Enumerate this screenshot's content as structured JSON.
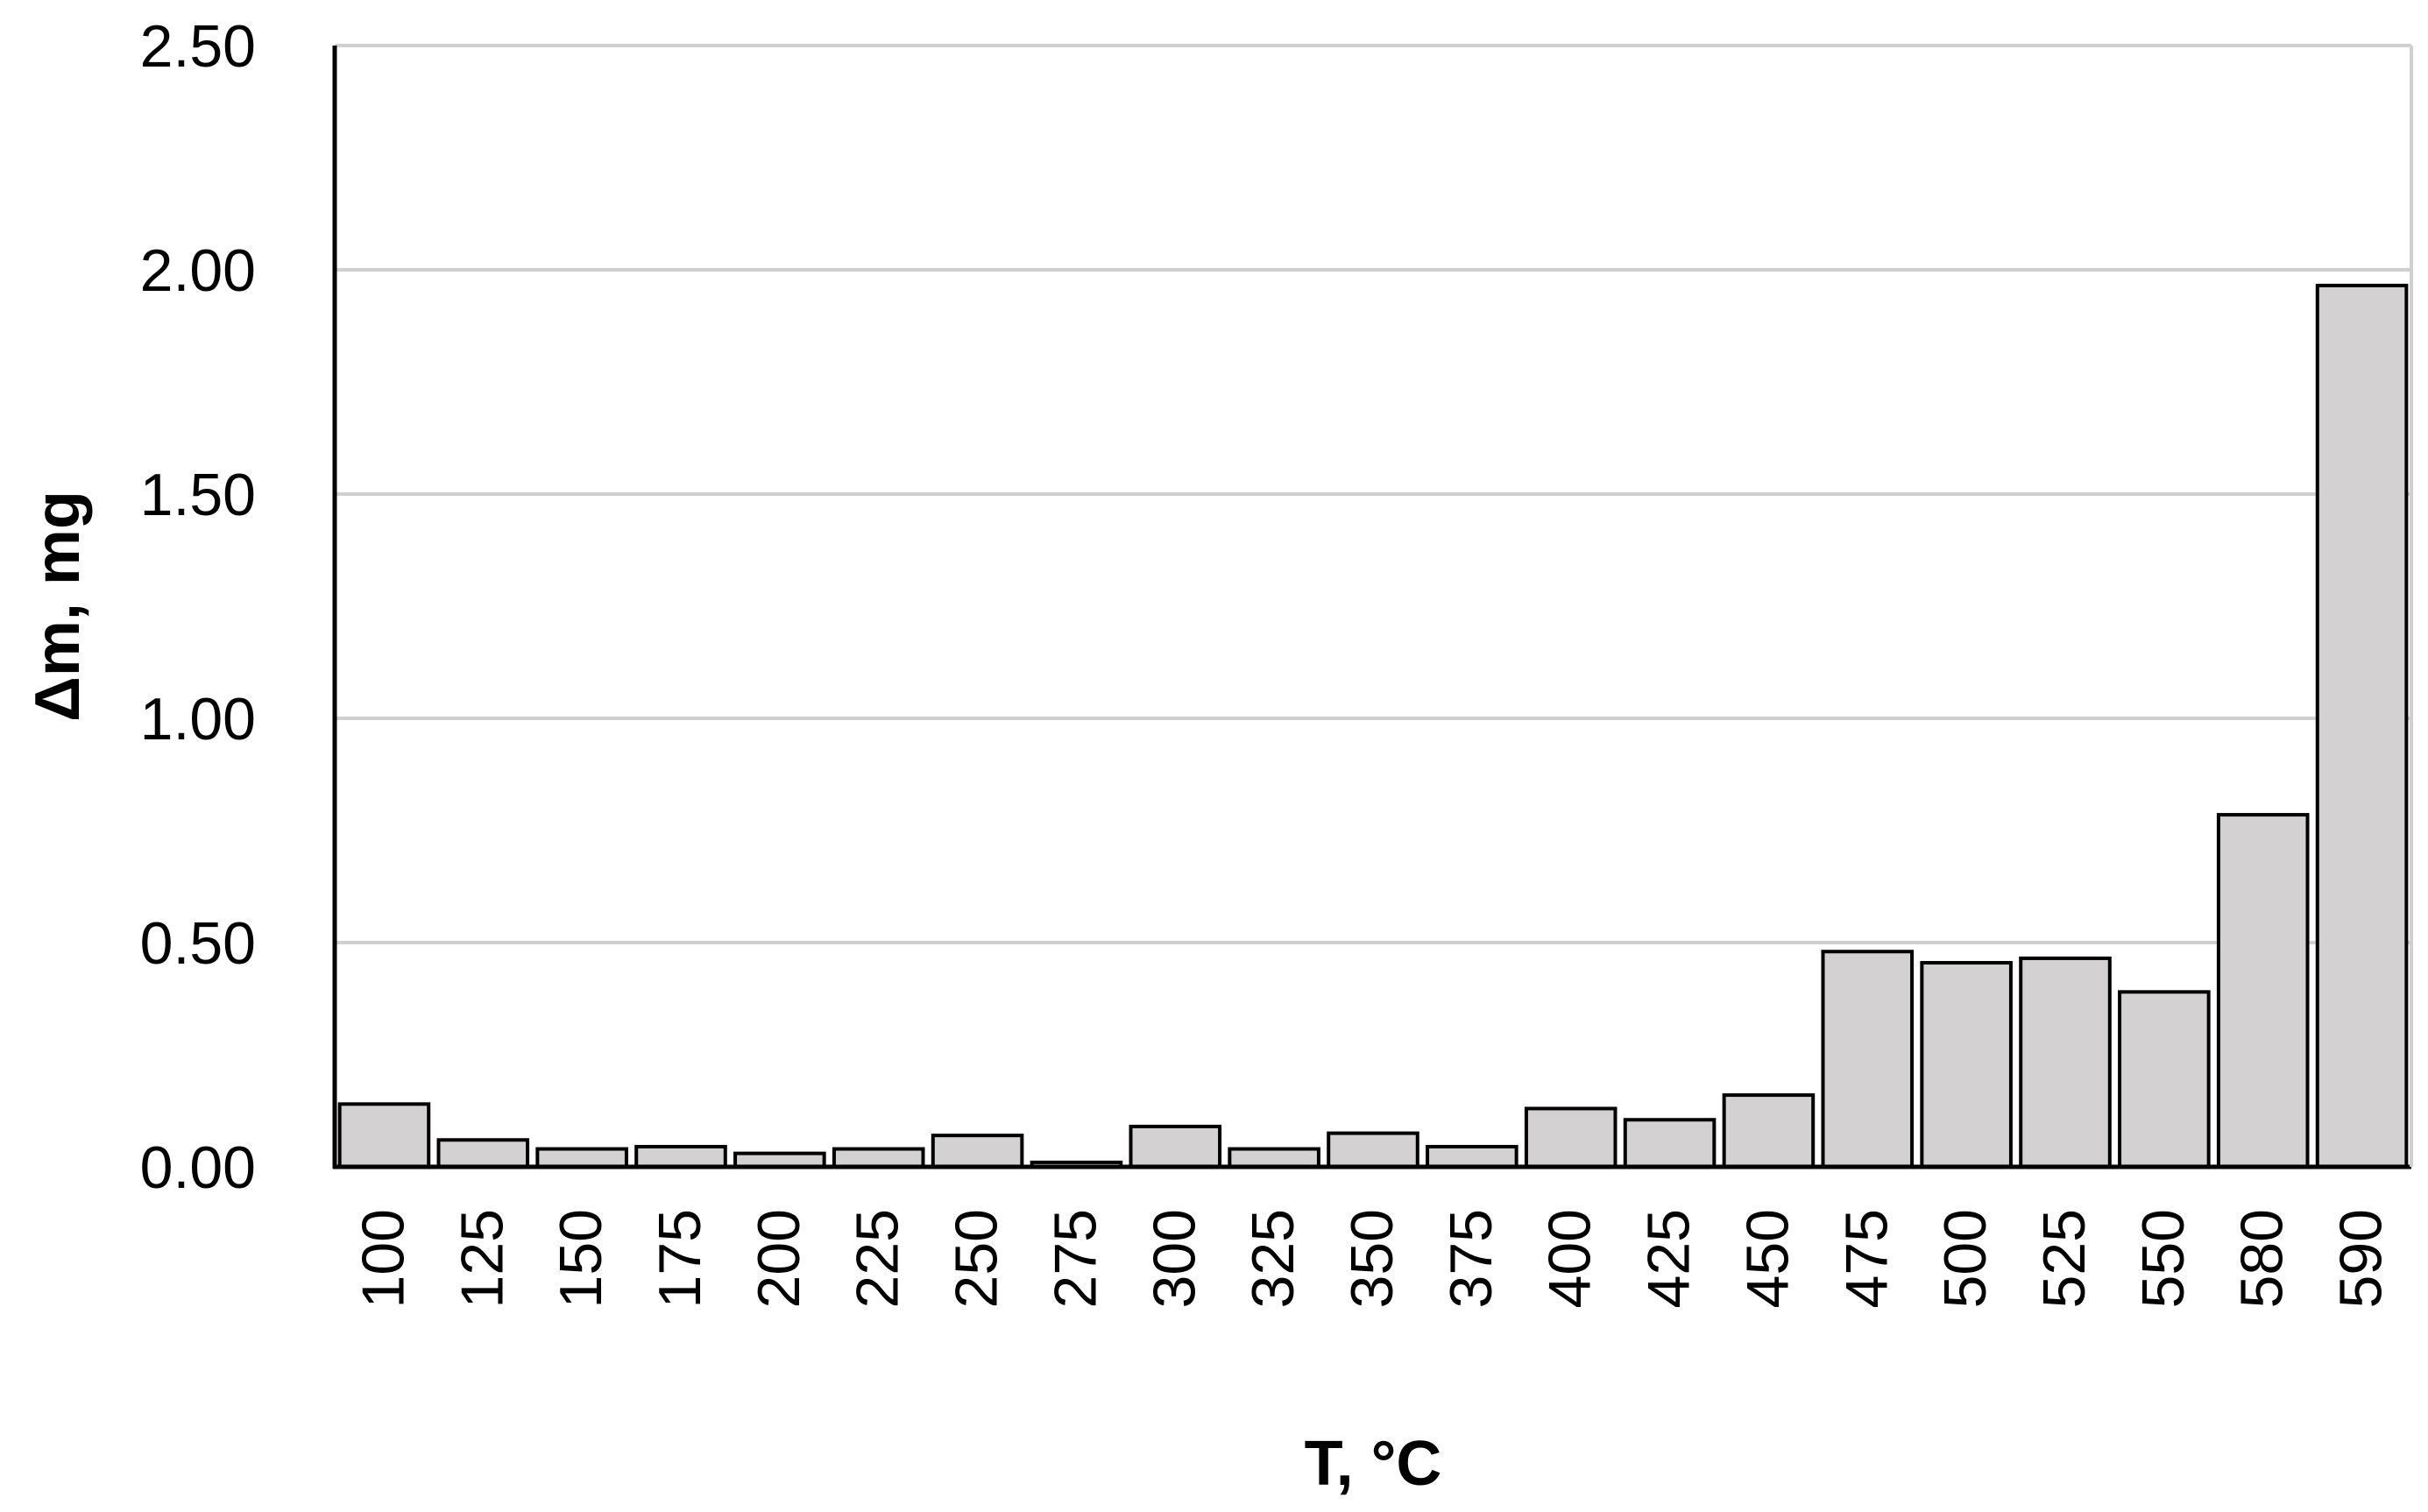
{
  "chart_data": {
    "type": "bar",
    "categories": [
      "100",
      "125",
      "150",
      "175",
      "200",
      "225",
      "250",
      "275",
      "300",
      "325",
      "350",
      "375",
      "400",
      "425",
      "450",
      "475",
      "500",
      "525",
      "550",
      "580",
      "590"
    ],
    "values": [
      0.14,
      0.06,
      0.04,
      0.045,
      0.03,
      0.04,
      0.07,
      0.01,
      0.09,
      0.04,
      0.075,
      0.045,
      0.13,
      0.105,
      0.16,
      0.48,
      0.455,
      0.465,
      0.39,
      0.785,
      1.965
    ],
    "title": "",
    "xlabel": "T, °C",
    "ylabel": "Δm, mg",
    "ylim": [
      0,
      2.5
    ],
    "yticks": [
      "0.00",
      "0.50",
      "1.00",
      "1.50",
      "2.00",
      "2.50"
    ],
    "ytick_values": [
      0,
      0.5,
      1.0,
      1.5,
      2.0,
      2.5
    ],
    "grid": true,
    "bar_color": "#d3d1d2",
    "bar_edge_color": "#000000",
    "grid_color": "#d0d0d0"
  }
}
